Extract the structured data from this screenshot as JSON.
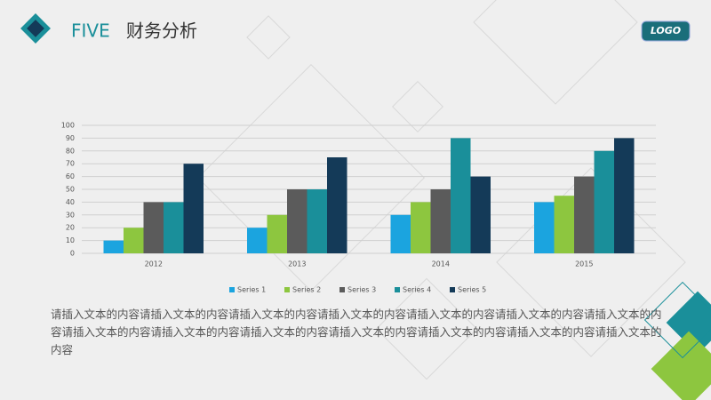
{
  "header": {
    "title_en": "FIVE",
    "title_cn": "财务分析"
  },
  "logo": "LOGO",
  "body_text": "请插入文本的内容请插入文本的内容请插入文本的内容请插入文本的内容请插入文本的内容请插入文本的内容请插入文本的内容请插入文本的内容请插入文本的内容请插入文本的内容请插入文本的内容请插入文本的内容请插入文本的内容请插入文本的内容",
  "chart_data": {
    "type": "bar",
    "categories": [
      "2012",
      "2013",
      "2014",
      "2015"
    ],
    "series": [
      {
        "name": "Series 1",
        "color": "#1ba4df",
        "values": [
          10,
          20,
          30,
          40
        ]
      },
      {
        "name": "Series 2",
        "color": "#8dc63f",
        "values": [
          20,
          30,
          40,
          45
        ]
      },
      {
        "name": "Series 3",
        "color": "#5b5b5b",
        "values": [
          40,
          50,
          50,
          60
        ]
      },
      {
        "name": "Series 4",
        "color": "#1a8f9a",
        "values": [
          40,
          50,
          90,
          80
        ]
      },
      {
        "name": "Series 5",
        "color": "#143a58",
        "values": [
          70,
          75,
          60,
          90
        ]
      }
    ],
    "ylim": [
      0,
      100
    ],
    "yticks": [
      0,
      10,
      20,
      30,
      40,
      50,
      60,
      70,
      80,
      90,
      100
    ],
    "grid": true,
    "legend": "bottom"
  }
}
